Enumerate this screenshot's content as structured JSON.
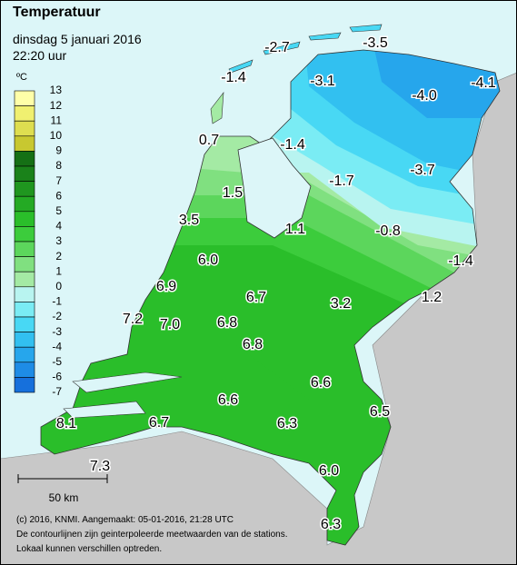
{
  "header": {
    "title": "Temperatuur",
    "date": "dinsdag 5 januari 2016",
    "time": "22:20 uur"
  },
  "legend": {
    "unit": "ºC",
    "labels": [
      13,
      12,
      11,
      10,
      9,
      8,
      7,
      6,
      5,
      4,
      3,
      2,
      1,
      0,
      -1,
      -2,
      -3,
      -4,
      -5,
      -6,
      -7
    ],
    "colors": [
      "#ffffa8",
      "#f0f070",
      "#dede50",
      "#c8c830",
      "#157015",
      "#1a821a",
      "#1f961f",
      "#24aa24",
      "#2abe2a",
      "#3ccc3c",
      "#5cd65c",
      "#80e080",
      "#a4eaa4",
      "#b8f4f0",
      "#7aecf4",
      "#48d8f4",
      "#32c0f0",
      "#26a6ec",
      "#1e8ce6",
      "#1670dc"
    ]
  },
  "stations": [
    "-2.7",
    "-3.5",
    "-1.4",
    "-3.1",
    "-4.0",
    "-4.1",
    "0.7",
    "-1.4",
    "-1.7",
    "-3.7",
    "1.5",
    "3.5",
    "1.1",
    "-0.8",
    "-1.4",
    "6.0",
    "6.9",
    "6.7",
    "3.2",
    "1.2",
    "7.2",
    "7.0",
    "6.8",
    "6.8",
    "6.6",
    "6.6",
    "6.5",
    "6.7",
    "6.3",
    "8.1",
    "7.3",
    "6.0",
    "6.3"
  ],
  "scale": {
    "label": "50 km"
  },
  "footer": [
    "(c) 2016, KNMI. Aangemaakt: 05-01-2016, 21:28 UTC",
    "De contourlijnen zijn geinterpoleerde meetwaarden van de stations.",
    "Lokaal kunnen verschillen optreden."
  ]
}
